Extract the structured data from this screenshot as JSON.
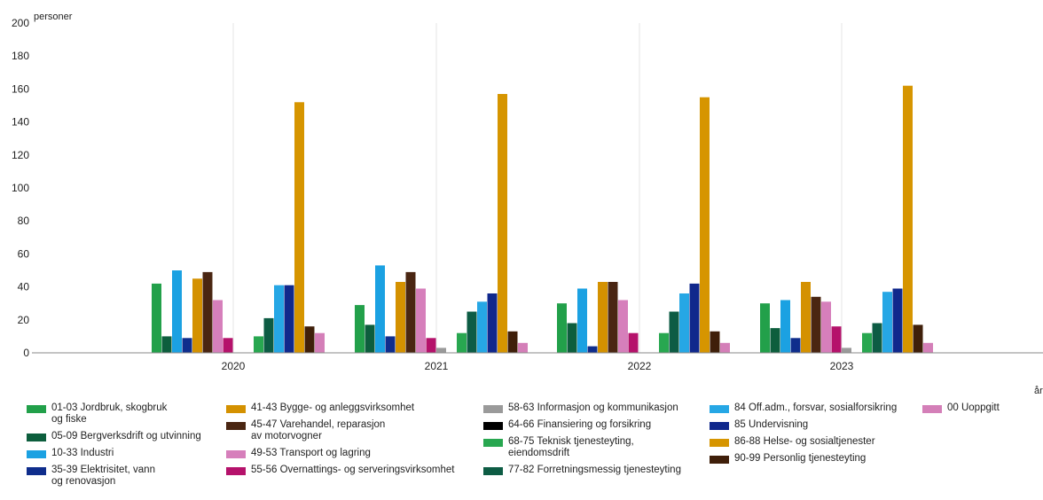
{
  "chart_data": {
    "type": "bar",
    "ylabel": "personer",
    "xlabel": "år",
    "ylim": [
      0,
      200
    ],
    "yticks": [
      0,
      20,
      40,
      60,
      80,
      100,
      120,
      140,
      160,
      180,
      200
    ],
    "categories": [
      "2020",
      "2021",
      "2022",
      "2023"
    ],
    "grid": "vertical lines between categories",
    "legend_position": "bottom",
    "series": [
      {
        "name": "01-03 Jordbruk, skogbruk\nog fiske",
        "color": "#22a04a",
        "values": [
          42,
          29,
          30,
          30
        ]
      },
      {
        "name": "05-09 Bergverksdrift og utvinning",
        "color": "#0d5e3d",
        "values": [
          10,
          17,
          18,
          15
        ]
      },
      {
        "name": "10-33 Industri",
        "color": "#1ba1e2",
        "values": [
          50,
          53,
          39,
          32
        ]
      },
      {
        "name": "35-39 Elektrisitet, vann\nog renovasjon",
        "color": "#0f2d8c",
        "values": [
          9,
          10,
          4,
          9
        ]
      },
      {
        "name": "41-43 Bygge- og anleggsvirksomhet",
        "color": "#d49100",
        "values": [
          45,
          43,
          43,
          43
        ]
      },
      {
        "name": "45-47 Varehandel, reparasjon\nav motorvogner",
        "color": "#4a2612",
        "values": [
          49,
          49,
          43,
          34
        ]
      },
      {
        "name": "49-53 Transport og lagring",
        "color": "#d67fbb",
        "values": [
          32,
          39,
          32,
          31
        ]
      },
      {
        "name": "55-56 Overnattings- og serveringsvirksomhet",
        "color": "#b5126b",
        "values": [
          9,
          9,
          12,
          16
        ]
      },
      {
        "name": "58-63 Informasjon og kommunikasjon",
        "color": "#9a9a9a",
        "values": [
          0,
          3,
          0,
          3
        ]
      },
      {
        "name": "64-66 Finansiering og forsikring",
        "color": "#000000",
        "values": [
          0,
          0,
          0,
          0
        ]
      },
      {
        "name": "68-75 Teknisk tjenesteyting,\neiendomsdrift",
        "color": "#28a750",
        "values": [
          10,
          12,
          12,
          12
        ]
      },
      {
        "name": "77-82 Forretningsmessig tjenesteyting",
        "color": "#0d5c44",
        "values": [
          21,
          25,
          25,
          18
        ]
      },
      {
        "name": "84 Off.adm., forsvar, sosialforsikring",
        "color": "#26a7e5",
        "values": [
          41,
          31,
          36,
          37
        ]
      },
      {
        "name": "85 Undervisning",
        "color": "#10288c",
        "values": [
          41,
          36,
          42,
          39
        ]
      },
      {
        "name": "86-88 Helse- og sosialtjenester",
        "color": "#d69500",
        "values": [
          152,
          157,
          155,
          162
        ]
      },
      {
        "name": "90-99 Personlig tjenesteyting",
        "color": "#3f1f0a",
        "values": [
          16,
          13,
          13,
          17
        ]
      },
      {
        "name": "00 Uoppgitt",
        "color": "#d47fb8",
        "values": [
          12,
          6,
          6,
          6
        ]
      }
    ]
  }
}
